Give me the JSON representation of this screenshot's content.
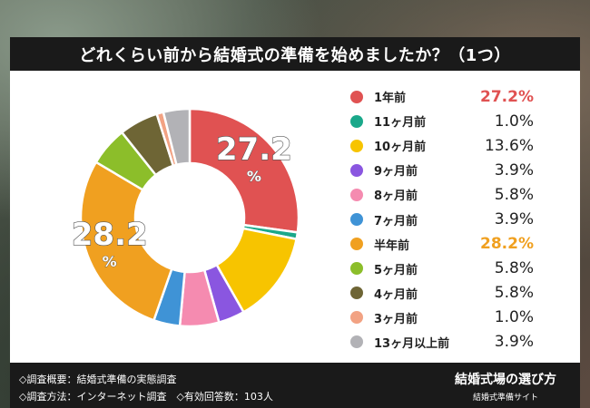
{
  "title": "どれくらい前から結婚式の準備を始めましたか？（1つ）",
  "chart_data": {
    "type": "pie",
    "categories": [
      "1年前",
      "11ヶ月前",
      "10ヶ月前",
      "9ヶ月前",
      "8ヶ月前",
      "7ヶ月前",
      "半年前",
      "5ヶ月前",
      "4ヶ月前",
      "3ヶ月前",
      "13ヶ月以上前"
    ],
    "values": [
      27.2,
      1.0,
      13.6,
      3.9,
      5.8,
      3.9,
      28.2,
      5.8,
      5.8,
      1.0,
      3.9
    ],
    "value_labels": [
      "27.2%",
      "1.0%",
      "13.6%",
      "3.9%",
      "5.8%",
      "3.9%",
      "28.2%",
      "5.8%",
      "5.8%",
      "1.0%",
      "3.9%"
    ],
    "colors": [
      "#e05252",
      "#1aa88a",
      "#f7c400",
      "#8a56e0",
      "#f58bb0",
      "#3f93d6",
      "#f0a020",
      "#8cbe2a",
      "#6e6535",
      "#f2a283",
      "#b2b2b6"
    ],
    "donut": true,
    "callouts": [
      {
        "index": 0,
        "number": "27.2",
        "unit": "%"
      },
      {
        "index": 6,
        "number": "28.2",
        "unit": "%"
      }
    ],
    "legend_position": "right"
  },
  "footer": {
    "note1": "◇調査概要：結婚式準備の実態調査",
    "note2": "◇調査方法：インターネット調査　◇有効回答数：103人",
    "site_name": "結婚式場の選び方",
    "site_sub": "結婚式準備サイト"
  }
}
